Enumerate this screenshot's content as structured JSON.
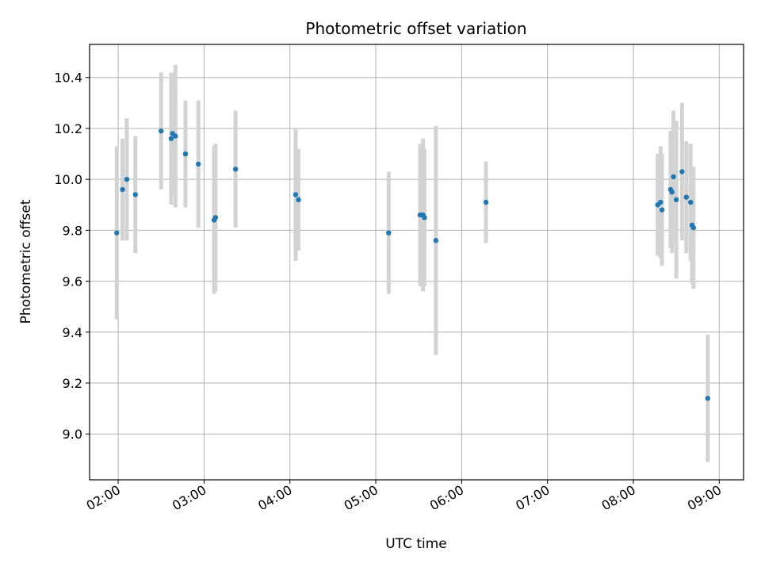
{
  "chart_data": {
    "type": "scatter",
    "title": "Photometric offset variation",
    "xlabel": "UTC time",
    "ylabel": "Photometric offset",
    "xlim": [
      "01:40",
      "09:17"
    ],
    "ylim": [
      8.82,
      10.53
    ],
    "grid": true,
    "x_ticks": [
      "02:00",
      "03:00",
      "04:00",
      "05:00",
      "06:00",
      "07:00",
      "08:00",
      "09:00"
    ],
    "y_ticks": [
      "9.0",
      "9.2",
      "9.4",
      "9.6",
      "9.8",
      "10.0",
      "10.2",
      "10.4"
    ],
    "colors": {
      "point": "#1f77b4",
      "errorbar": "#d3d3d3",
      "grid": "#b0b0b0"
    },
    "points": [
      {
        "x": "01:59",
        "y": 9.79,
        "err": 0.34
      },
      {
        "x": "02:03",
        "y": 9.96,
        "err": 0.2
      },
      {
        "x": "02:06",
        "y": 10.0,
        "err": 0.24
      },
      {
        "x": "02:12",
        "y": 9.94,
        "err": 0.23
      },
      {
        "x": "02:30",
        "y": 10.19,
        "err": 0.23
      },
      {
        "x": "02:37",
        "y": 10.16,
        "err": 0.26
      },
      {
        "x": "02:38",
        "y": 10.18,
        "err": 0.24
      },
      {
        "x": "02:40",
        "y": 10.17,
        "err": 0.28
      },
      {
        "x": "02:47",
        "y": 10.1,
        "err": 0.21
      },
      {
        "x": "02:56",
        "y": 10.06,
        "err": 0.25
      },
      {
        "x": "03:07",
        "y": 9.84,
        "err": 0.29
      },
      {
        "x": "03:08",
        "y": 9.85,
        "err": 0.29
      },
      {
        "x": "03:22",
        "y": 10.04,
        "err": 0.23
      },
      {
        "x": "04:04",
        "y": 9.94,
        "err": 0.26
      },
      {
        "x": "04:06",
        "y": 9.92,
        "err": 0.2
      },
      {
        "x": "05:09",
        "y": 9.79,
        "err": 0.24
      },
      {
        "x": "05:31",
        "y": 9.86,
        "err": 0.28
      },
      {
        "x": "05:33",
        "y": 9.86,
        "err": 0.3
      },
      {
        "x": "05:34",
        "y": 9.85,
        "err": 0.27
      },
      {
        "x": "05:42",
        "y": 9.76,
        "err": 0.45
      },
      {
        "x": "06:17",
        "y": 9.91,
        "err": 0.16
      },
      {
        "x": "08:17",
        "y": 9.9,
        "err": 0.2
      },
      {
        "x": "08:19",
        "y": 9.91,
        "err": 0.22
      },
      {
        "x": "08:20",
        "y": 9.88,
        "err": 0.22
      },
      {
        "x": "08:26",
        "y": 9.96,
        "err": 0.23
      },
      {
        "x": "08:27",
        "y": 9.95,
        "err": 0.24
      },
      {
        "x": "08:28",
        "y": 10.01,
        "err": 0.26
      },
      {
        "x": "08:30",
        "y": 9.92,
        "err": 0.31
      },
      {
        "x": "08:34",
        "y": 10.03,
        "err": 0.27
      },
      {
        "x": "08:37",
        "y": 9.93,
        "err": 0.22
      },
      {
        "x": "08:40",
        "y": 9.91,
        "err": 0.23
      },
      {
        "x": "08:41",
        "y": 9.82,
        "err": 0.23
      },
      {
        "x": "08:42",
        "y": 9.81,
        "err": 0.24
      },
      {
        "x": "08:52",
        "y": 9.14,
        "err": 0.25
      }
    ]
  }
}
